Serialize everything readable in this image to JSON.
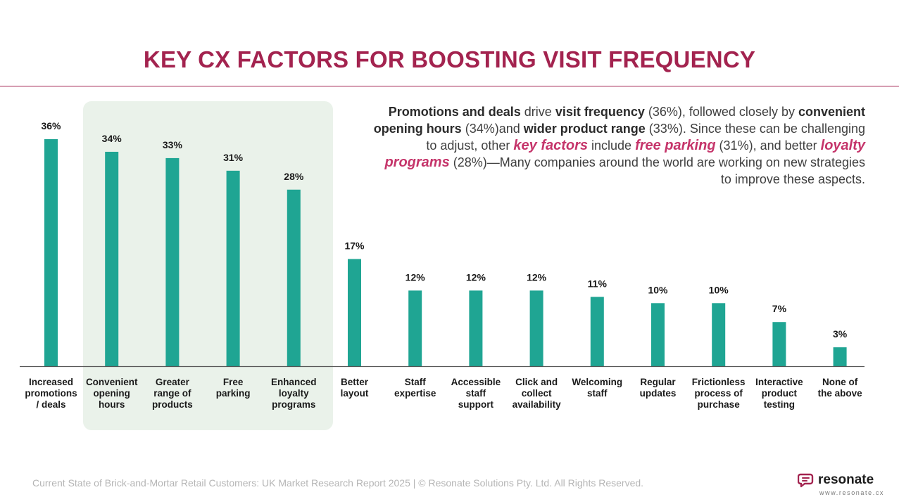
{
  "page": {
    "title": "KEY CX FACTORS FOR BOOSTING VISIT FREQUENCY",
    "callout": [
      {
        "text": "Promotions and deals",
        "style": "bold"
      },
      {
        "text": " drive ",
        "style": "plain"
      },
      {
        "text": "visit frequency",
        "style": "bold"
      },
      {
        "text": " (36%), followed closely by ",
        "style": "plain"
      },
      {
        "text": "convenient opening hours",
        "style": "bold"
      },
      {
        "text": " (34%)and ",
        "style": "plain"
      },
      {
        "text": "wider product range",
        "style": "bold"
      },
      {
        "text": " (33%). Since these can be challenging to adjust, other ",
        "style": "plain"
      },
      {
        "text": "key factors",
        "style": "emphasis"
      },
      {
        "text": " include ",
        "style": "plain"
      },
      {
        "text": "free parking",
        "style": "emphasis"
      },
      {
        "text": " (31%), and better ",
        "style": "plain"
      },
      {
        "text": "loyalty programs",
        "style": "emphasis"
      },
      {
        "text": " (28%)—Many companies around the world are working on new strategies to improve these aspects.",
        "style": "plain"
      }
    ],
    "footer": "Current State of Brick-and-Mortar Retail Customers: UK Market Research Report 2025 | © Resonate Solutions Pty. Ltd. All Rights Reserved.",
    "brand_name": "resonate",
    "brand_url": "www.resonate.cx"
  },
  "colors": {
    "title": "#a3234f",
    "rule": "#a3234f",
    "bar": "#1fa593",
    "emphasis": "#c5346a",
    "highlight": "#eaf2ea",
    "logo": "#a3234f"
  },
  "icons": {
    "brand_logo": "chat-bubble-logo-icon"
  },
  "chart_data": {
    "type": "bar",
    "categories": [
      "Increased promotions / deals",
      "Convenient opening hours",
      "Greater range of products",
      "Free parking",
      "Enhanced loyalty programs",
      "Better layout",
      "Staff expertise",
      "Accessible staff support",
      "Click and collect availability",
      "Welcoming staff",
      "Regular updates",
      "Frictionless process of purchase",
      "Interactive product testing",
      "None of the above"
    ],
    "category_lines": [
      [
        "Increased",
        "promotions",
        "/ deals"
      ],
      [
        "Convenient",
        "opening",
        "hours"
      ],
      [
        "Greater",
        "range of",
        "products"
      ],
      [
        "Free",
        "parking"
      ],
      [
        "Enhanced",
        "loyalty",
        "programs"
      ],
      [
        "Better",
        "layout"
      ],
      [
        "Staff",
        "expertise"
      ],
      [
        "Accessible",
        "staff",
        "support"
      ],
      [
        "Click and",
        "collect",
        "availability"
      ],
      [
        "Welcoming",
        "staff"
      ],
      [
        "Regular",
        "updates"
      ],
      [
        "Frictionless",
        "process of",
        "purchase"
      ],
      [
        "Interactive",
        "product",
        "testing"
      ],
      [
        "None of",
        "the above"
      ]
    ],
    "values": [
      36,
      34,
      33,
      31,
      28,
      17,
      12,
      12,
      12,
      11,
      10,
      10,
      7,
      3
    ],
    "data_labels": [
      "36%",
      "34%",
      "33%",
      "31%",
      "28%",
      "17%",
      "12%",
      "12%",
      "12%",
      "11%",
      "10%",
      "10%",
      "7%",
      "3%"
    ],
    "unit": "%",
    "ylim": [
      0,
      36
    ],
    "highlighted_categories": [
      "Convenient opening hours",
      "Greater range of products",
      "Free parking",
      "Enhanced loyalty programs"
    ],
    "grid": false,
    "y_axis_shown": false,
    "legend": "none",
    "title": "KEY CX FACTORS FOR BOOSTING VISIT FREQUENCY",
    "xlabel": "",
    "ylabel": ""
  }
}
